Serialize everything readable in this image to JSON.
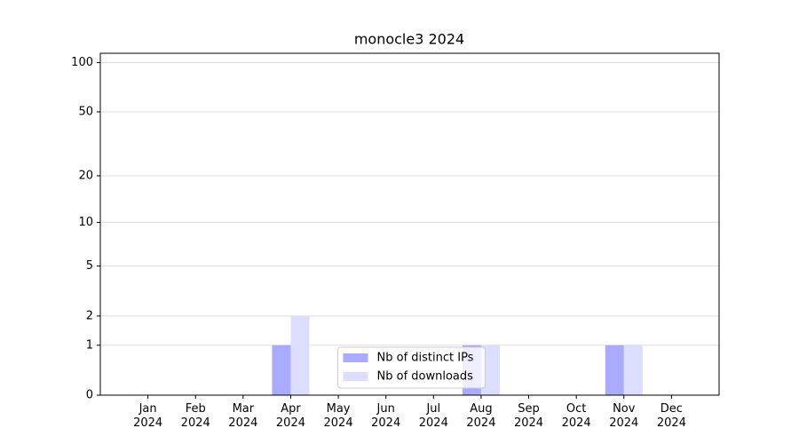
{
  "chart_data": {
    "type": "bar",
    "title": "monocle3 2024",
    "categories": [
      "Jan 2024",
      "Feb 2024",
      "Mar 2024",
      "Apr 2024",
      "May 2024",
      "Jun 2024",
      "Jul 2024",
      "Aug 2024",
      "Sep 2024",
      "Oct 2024",
      "Nov 2024",
      "Dec 2024"
    ],
    "series": [
      {
        "name": "Nb of distinct IPs",
        "color": "#aaaaff",
        "values": [
          0,
          0,
          0,
          1,
          0,
          0,
          0,
          1,
          0,
          0,
          1,
          0
        ]
      },
      {
        "name": "Nb of downloads",
        "color": "#ddddff",
        "values": [
          0,
          0,
          0,
          2,
          0,
          0,
          0,
          1,
          0,
          0,
          1,
          0
        ]
      }
    ],
    "yscale": "log1p",
    "ylim": [
      0,
      114
    ],
    "yticks": [
      0,
      1,
      2,
      5,
      10,
      20,
      50,
      100
    ],
    "grid": true,
    "legend": "lower center"
  }
}
